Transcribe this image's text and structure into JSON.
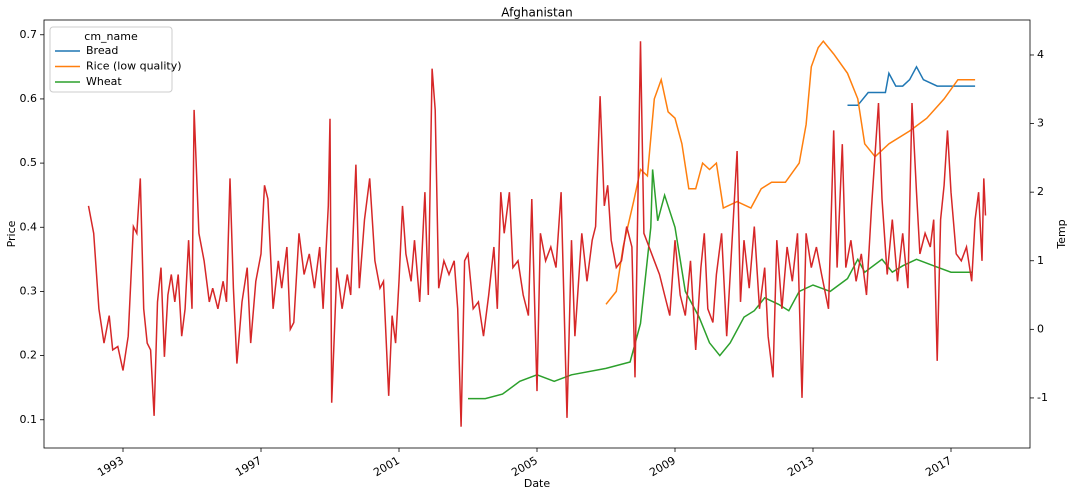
{
  "chart_data": {
    "type": "line",
    "title": "Afghanistan",
    "xlabel": "Date",
    "ylabel": "Price",
    "y2label": "Temp",
    "legend_title": "cm_name",
    "legend": "upper left",
    "xlim": [
      1990.71,
      2019.29
    ],
    "xticks": [
      1993,
      1997,
      2001,
      2005,
      2009,
      2013,
      2017
    ],
    "ylim": [
      0.056,
      0.723
    ],
    "yticks": [
      0.1,
      0.2,
      0.3,
      0.4,
      0.5,
      0.6,
      0.7
    ],
    "y2lim": [
      -1.73,
      4.51
    ],
    "y2ticks": [
      -1,
      0,
      1,
      2,
      3,
      4
    ],
    "series": [
      {
        "name": "Bread",
        "color": "#1f77b4",
        "x": [
          2014.0,
          2014.3,
          2014.6,
          2015.0,
          2015.1,
          2015.2,
          2015.4,
          2015.6,
          2015.8,
          2016.0,
          2016.2,
          2016.6,
          2017.0,
          2017.7
        ],
        "values": [
          0.59,
          0.59,
          0.61,
          0.61,
          0.61,
          0.64,
          0.62,
          0.62,
          0.63,
          0.65,
          0.63,
          0.62,
          0.62,
          0.62
        ]
      },
      {
        "name": "Rice (low quality)",
        "color": "#ff7f0e",
        "x": [
          2007.0,
          2007.3,
          2007.5,
          2007.8,
          2008.0,
          2008.2,
          2008.4,
          2008.6,
          2008.8,
          2009.0,
          2009.2,
          2009.4,
          2009.6,
          2009.8,
          2010.0,
          2010.2,
          2010.4,
          2010.8,
          2011.2,
          2011.5,
          2011.8,
          2012.2,
          2012.6,
          2012.8,
          2012.95,
          2013.15,
          2013.3,
          2013.6,
          2014.0,
          2014.3,
          2014.5,
          2014.8,
          2015.2,
          2015.8,
          2016.3,
          2016.8,
          2017.2,
          2017.7
        ],
        "values": [
          0.28,
          0.3,
          0.37,
          0.44,
          0.49,
          0.48,
          0.6,
          0.63,
          0.58,
          0.57,
          0.53,
          0.46,
          0.46,
          0.5,
          0.49,
          0.5,
          0.43,
          0.44,
          0.43,
          0.46,
          0.47,
          0.47,
          0.5,
          0.56,
          0.65,
          0.68,
          0.69,
          0.67,
          0.64,
          0.6,
          0.53,
          0.51,
          0.53,
          0.55,
          0.57,
          0.6,
          0.63,
          0.63
        ]
      },
      {
        "name": "Wheat",
        "color": "#2ca02c",
        "x": [
          2003.0,
          2003.5,
          2004.0,
          2004.5,
          2005.0,
          2005.5,
          2006.0,
          2007.0,
          2007.7,
          2008.0,
          2008.3,
          2008.35,
          2008.5,
          2008.7,
          2009.0,
          2009.3,
          2009.7,
          2010.0,
          2010.3,
          2010.6,
          2011.0,
          2011.3,
          2011.6,
          2012.0,
          2012.3,
          2012.6,
          2013.0,
          2013.5,
          2014.0,
          2014.3,
          2014.5,
          2015.0,
          2015.3,
          2015.6,
          2016.0,
          2016.5,
          2017.0,
          2017.6
        ],
        "values": [
          0.133,
          0.133,
          0.14,
          0.16,
          0.17,
          0.16,
          0.17,
          0.18,
          0.19,
          0.25,
          0.4,
          0.49,
          0.41,
          0.45,
          0.4,
          0.3,
          0.26,
          0.22,
          0.2,
          0.22,
          0.26,
          0.27,
          0.29,
          0.28,
          0.27,
          0.3,
          0.31,
          0.3,
          0.32,
          0.35,
          0.33,
          0.35,
          0.33,
          0.34,
          0.35,
          0.34,
          0.33,
          0.33
        ]
      },
      {
        "color": "#d62728",
        "axis": "y2",
        "x": [
          1992.0,
          1992.15,
          1992.3,
          1992.45,
          1992.6,
          1992.7,
          1992.85,
          1993.0,
          1993.15,
          1993.3,
          1993.4,
          1993.5,
          1993.6,
          1993.7,
          1993.8,
          1993.9,
          1994.0,
          1994.1,
          1994.2,
          1994.3,
          1994.4,
          1994.5,
          1994.6,
          1994.7,
          1994.8,
          1994.9,
          1995.0,
          1995.06,
          1995.2,
          1995.35,
          1995.5,
          1995.6,
          1995.75,
          1995.9,
          1996.0,
          1996.1,
          1996.2,
          1996.3,
          1996.45,
          1996.6,
          1996.7,
          1996.85,
          1997.0,
          1997.1,
          1997.2,
          1997.35,
          1997.5,
          1997.6,
          1997.75,
          1997.85,
          1997.95,
          1998.1,
          1998.25,
          1998.4,
          1998.55,
          1998.7,
          1998.8,
          1998.95,
          1999.0,
          1999.05,
          1999.2,
          1999.35,
          1999.5,
          1999.6,
          1999.75,
          1999.85,
          2000.0,
          2000.15,
          2000.3,
          2000.45,
          2000.55,
          2000.7,
          2000.8,
          2000.9,
          2001.0,
          2001.1,
          2001.2,
          2001.35,
          2001.45,
          2001.6,
          2001.75,
          2001.85,
          2001.96,
          2002.05,
          2002.15,
          2002.3,
          2002.45,
          2002.6,
          2002.7,
          2002.8,
          2002.9,
          2003.0,
          2003.15,
          2003.3,
          2003.45,
          2003.6,
          2003.75,
          2003.85,
          2003.95,
          2004.05,
          2004.2,
          2004.3,
          2004.45,
          2004.6,
          2004.75,
          2004.85,
          2005.0,
          2005.1,
          2005.25,
          2005.4,
          2005.55,
          2005.7,
          2005.87,
          2006.0,
          2006.1,
          2006.3,
          2006.45,
          2006.6,
          2006.7,
          2006.83,
          2006.95,
          2007.05,
          2007.15,
          2007.3,
          2007.45,
          2007.6,
          2007.75,
          2007.84,
          2008.0,
          2008.1,
          2008.25,
          2008.4,
          2008.55,
          2008.7,
          2008.85,
          2009.0,
          2009.15,
          2009.3,
          2009.45,
          2009.6,
          2009.75,
          2009.85,
          2009.95,
          2010.1,
          2010.2,
          2010.35,
          2010.5,
          2010.6,
          2010.8,
          2010.9,
          2011.0,
          2011.15,
          2011.3,
          2011.45,
          2011.6,
          2011.7,
          2011.84,
          2011.95,
          2012.1,
          2012.25,
          2012.4,
          2012.55,
          2012.68,
          2012.8,
          2012.95,
          2013.1,
          2013.25,
          2013.45,
          2013.6,
          2013.7,
          2013.85,
          2013.95,
          2014.1,
          2014.25,
          2014.4,
          2014.55,
          2014.7,
          2014.9,
          2015.0,
          2015.15,
          2015.3,
          2015.45,
          2015.6,
          2015.75,
          2015.87,
          2016.0,
          2016.1,
          2016.25,
          2016.4,
          2016.5,
          2016.6,
          2016.7,
          2016.8,
          2016.9,
          2017.0,
          2017.15,
          2017.3,
          2017.45,
          2017.6,
          2017.7,
          2017.8,
          2017.9,
          2017.95,
          2018.0
        ],
        "values": [
          1.8,
          1.4,
          0.3,
          -0.2,
          0.2,
          -0.3,
          -0.25,
          -0.6,
          -0.1,
          1.5,
          1.4,
          2.2,
          0.3,
          -0.2,
          -0.3,
          -1.26,
          0.4,
          0.9,
          -0.4,
          0.5,
          0.8,
          0.4,
          0.8,
          -0.1,
          0.3,
          1.3,
          0.3,
          3.2,
          1.4,
          1.0,
          0.4,
          0.6,
          0.3,
          0.7,
          0.4,
          2.2,
          0.6,
          -0.5,
          0.4,
          0.9,
          -0.2,
          0.7,
          1.1,
          2.1,
          1.9,
          0.3,
          1.0,
          0.6,
          1.2,
          0.0,
          0.1,
          1.4,
          0.8,
          1.1,
          0.6,
          1.2,
          0.3,
          1.8,
          3.07,
          -1.07,
          0.9,
          0.3,
          0.8,
          0.5,
          2.4,
          0.6,
          1.6,
          2.2,
          1.0,
          0.6,
          0.7,
          -0.97,
          0.2,
          -0.2,
          0.7,
          1.8,
          1.1,
          0.7,
          1.3,
          0.4,
          2.0,
          0.5,
          3.8,
          3.2,
          0.6,
          1.0,
          0.8,
          1.0,
          0.3,
          -1.42,
          1.0,
          1.1,
          0.3,
          0.4,
          -0.1,
          0.5,
          1.2,
          0.3,
          2.0,
          1.4,
          2.0,
          0.9,
          1.0,
          0.5,
          0.2,
          1.9,
          -0.9,
          1.4,
          1.0,
          1.2,
          0.9,
          2.0,
          -1.29,
          1.3,
          -0.1,
          1.4,
          0.7,
          1.3,
          1.5,
          3.4,
          1.8,
          2.1,
          1.3,
          0.9,
          1.0,
          1.5,
          1.2,
          -0.7,
          4.2,
          1.4,
          1.2,
          1.0,
          0.8,
          0.5,
          0.2,
          1.3,
          0.5,
          0.2,
          1.0,
          -0.3,
          0.9,
          1.4,
          0.3,
          0.1,
          0.8,
          1.4,
          -0.1,
          0.8,
          2.6,
          0.4,
          1.3,
          0.6,
          1.5,
          0.3,
          0.9,
          -0.1,
          -0.7,
          1.3,
          0.3,
          1.2,
          0.7,
          1.4,
          -1.0,
          1.4,
          0.9,
          1.2,
          0.8,
          0.3,
          2.9,
          0.9,
          2.7,
          0.9,
          1.3,
          0.7,
          1.1,
          0.5,
          1.8,
          3.3,
          1.9,
          0.8,
          1.6,
          0.7,
          1.4,
          0.6,
          3.3,
          2.0,
          1.1,
          1.4,
          1.2,
          1.6,
          -0.46,
          1.6,
          2.1,
          2.9,
          2.0,
          1.1,
          1.0,
          1.2,
          0.7,
          1.6,
          2.0,
          1.0,
          2.2,
          1.66
        ]
      }
    ]
  }
}
